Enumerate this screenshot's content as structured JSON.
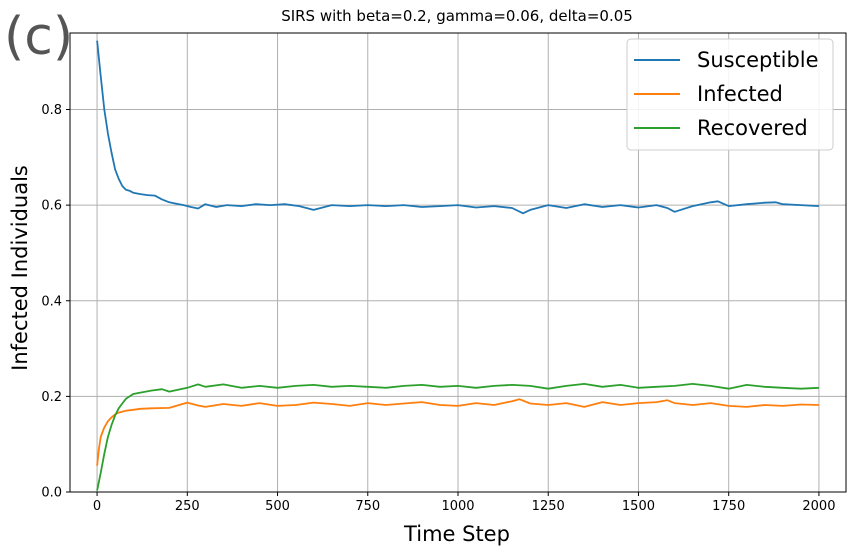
{
  "panel_label": "(c)",
  "chart_data": {
    "type": "line",
    "title": "SIRS with beta=0.2, gamma=0.06, delta=0.05",
    "xlabel": "Time Step",
    "ylabel": "Infected Individuals",
    "xlim": [
      -75,
      2075
    ],
    "ylim": [
      0.0,
      0.96
    ],
    "xticks": [
      0,
      250,
      500,
      750,
      1000,
      1250,
      1500,
      1750,
      2000
    ],
    "xtick_labels": [
      "0",
      "250",
      "500",
      "750",
      "1000",
      "1250",
      "1500",
      "1750",
      "2000"
    ],
    "yticks": [
      0.0,
      0.2,
      0.4,
      0.6,
      0.8
    ],
    "ytick_labels": [
      "0.0",
      "0.2",
      "0.4",
      "0.6",
      "0.8"
    ],
    "grid": true,
    "legend_position": "top-right",
    "series": [
      {
        "name": "Susceptible",
        "color": "#1f77b4",
        "x": [
          0,
          10,
          20,
          30,
          40,
          50,
          60,
          70,
          80,
          90,
          100,
          120,
          140,
          160,
          180,
          200,
          220,
          240,
          260,
          280,
          300,
          330,
          360,
          400,
          440,
          480,
          520,
          560,
          600,
          650,
          700,
          750,
          800,
          850,
          900,
          950,
          1000,
          1050,
          1100,
          1150,
          1180,
          1200,
          1250,
          1300,
          1350,
          1400,
          1450,
          1500,
          1550,
          1580,
          1600,
          1650,
          1700,
          1720,
          1750,
          1800,
          1850,
          1880,
          1900,
          1950,
          2000
        ],
        "y": [
          0.944,
          0.87,
          0.8,
          0.75,
          0.71,
          0.675,
          0.655,
          0.64,
          0.632,
          0.63,
          0.626,
          0.623,
          0.621,
          0.62,
          0.612,
          0.606,
          0.603,
          0.6,
          0.596,
          0.593,
          0.602,
          0.596,
          0.6,
          0.598,
          0.602,
          0.6,
          0.602,
          0.598,
          0.59,
          0.6,
          0.598,
          0.6,
          0.598,
          0.6,
          0.596,
          0.598,
          0.6,
          0.595,
          0.598,
          0.594,
          0.583,
          0.59,
          0.6,
          0.594,
          0.602,
          0.596,
          0.6,
          0.595,
          0.6,
          0.594,
          0.586,
          0.598,
          0.606,
          0.608,
          0.598,
          0.602,
          0.605,
          0.606,
          0.602,
          0.6,
          0.598
        ]
      },
      {
        "name": "Infected",
        "color": "#ff7f0e",
        "x": [
          0,
          5,
          10,
          20,
          30,
          40,
          50,
          60,
          80,
          100,
          120,
          150,
          200,
          250,
          280,
          300,
          350,
          400,
          450,
          500,
          550,
          600,
          650,
          700,
          750,
          800,
          850,
          900,
          950,
          1000,
          1050,
          1100,
          1150,
          1170,
          1200,
          1250,
          1300,
          1350,
          1400,
          1450,
          1500,
          1550,
          1580,
          1600,
          1650,
          1700,
          1750,
          1800,
          1850,
          1900,
          1950,
          2000
        ],
        "y": [
          0.055,
          0.09,
          0.115,
          0.135,
          0.148,
          0.156,
          0.162,
          0.166,
          0.17,
          0.172,
          0.174,
          0.175,
          0.176,
          0.187,
          0.181,
          0.178,
          0.184,
          0.18,
          0.186,
          0.18,
          0.182,
          0.187,
          0.184,
          0.18,
          0.186,
          0.182,
          0.185,
          0.188,
          0.182,
          0.18,
          0.186,
          0.182,
          0.19,
          0.194,
          0.185,
          0.182,
          0.186,
          0.178,
          0.188,
          0.182,
          0.186,
          0.188,
          0.192,
          0.186,
          0.182,
          0.186,
          0.18,
          0.178,
          0.182,
          0.18,
          0.183,
          0.182
        ]
      },
      {
        "name": "Recovered",
        "color": "#2ca02c",
        "x": [
          0,
          10,
          20,
          30,
          40,
          50,
          60,
          70,
          80,
          90,
          100,
          120,
          150,
          180,
          200,
          250,
          280,
          300,
          350,
          400,
          450,
          500,
          550,
          600,
          650,
          700,
          750,
          800,
          850,
          900,
          950,
          1000,
          1050,
          1100,
          1150,
          1200,
          1250,
          1300,
          1350,
          1400,
          1450,
          1500,
          1550,
          1600,
          1650,
          1700,
          1750,
          1800,
          1850,
          1900,
          1950,
          2000
        ],
        "y": [
          0.003,
          0.04,
          0.08,
          0.115,
          0.14,
          0.16,
          0.175,
          0.185,
          0.195,
          0.2,
          0.205,
          0.208,
          0.212,
          0.215,
          0.21,
          0.218,
          0.225,
          0.22,
          0.225,
          0.218,
          0.222,
          0.218,
          0.222,
          0.224,
          0.22,
          0.222,
          0.22,
          0.218,
          0.222,
          0.224,
          0.22,
          0.222,
          0.218,
          0.222,
          0.224,
          0.222,
          0.216,
          0.222,
          0.226,
          0.22,
          0.224,
          0.218,
          0.22,
          0.222,
          0.226,
          0.222,
          0.216,
          0.224,
          0.22,
          0.218,
          0.216,
          0.218
        ]
      }
    ]
  }
}
